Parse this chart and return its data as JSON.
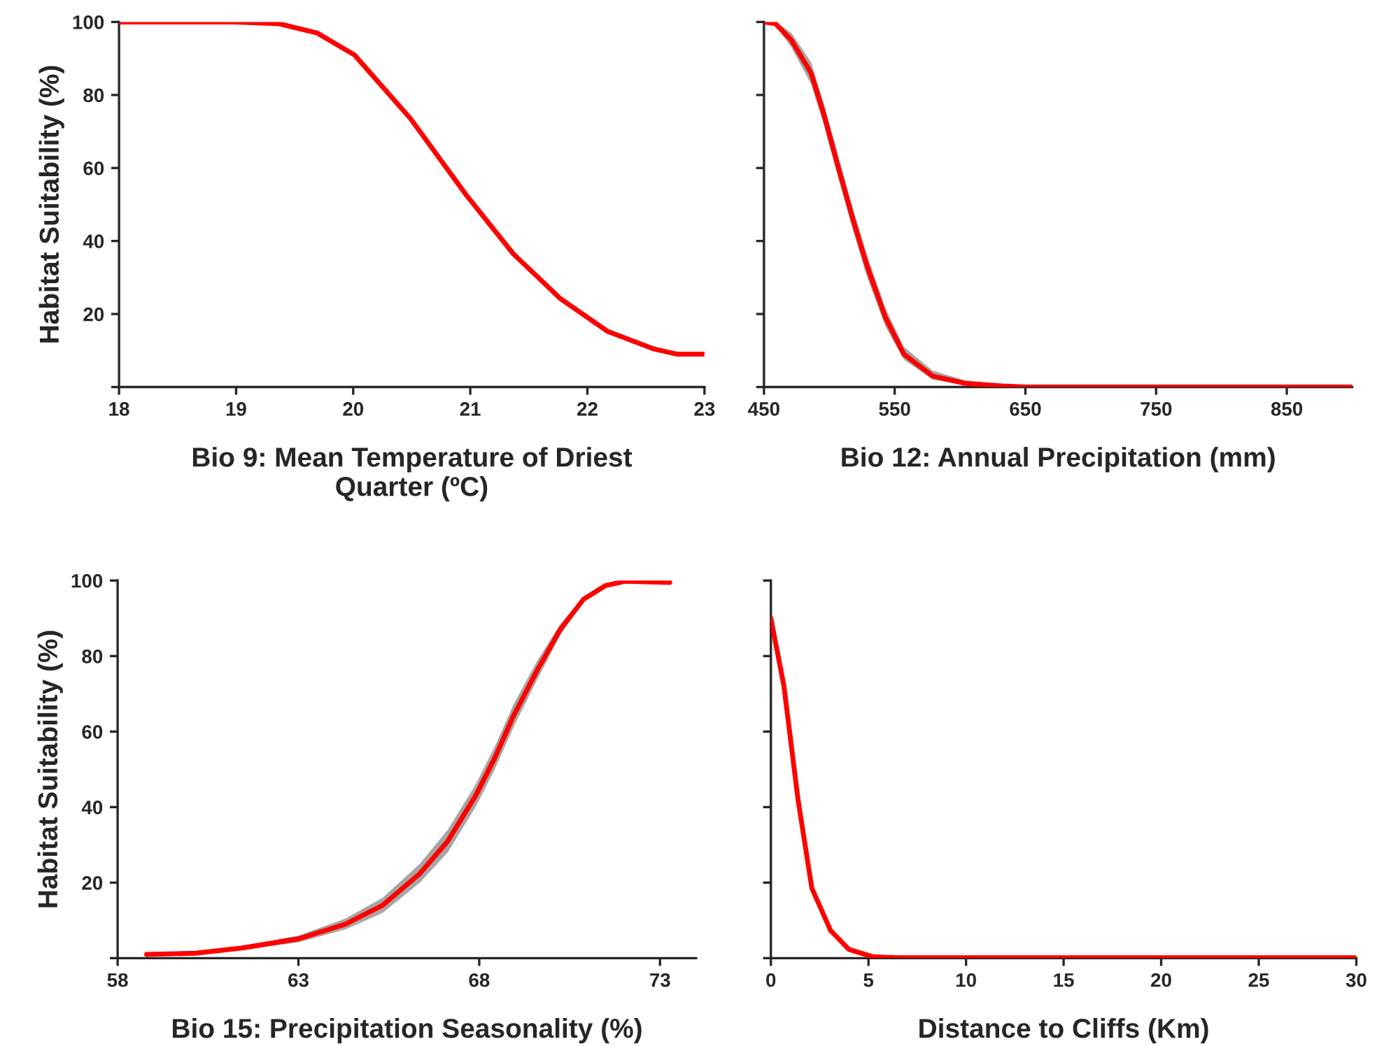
{
  "chart_data": [
    {
      "type": "line",
      "xlabel": "Bio 9: Mean Temperature of Driest\nQuarter (ºC)",
      "ylabel": "Habitat Suitability (%)",
      "xlim": [
        18,
        23
      ],
      "xticks": [
        18,
        19,
        20,
        21,
        22,
        23
      ],
      "ylim": [
        0,
        100
      ],
      "yticks": [
        {
          "value": 0,
          "label": null
        },
        20,
        40,
        60,
        80,
        100
      ],
      "grid": false,
      "legend": false,
      "marker": "none",
      "line_style": "solid",
      "series": [
        {
          "color": "#ff0000",
          "x": [
            18,
            19,
            19.37,
            19.69,
            20.01,
            20.49,
            20.97,
            21.37,
            21.77,
            22.17,
            22.57,
            22.77,
            23
          ],
          "values": [
            100,
            100,
            99.5,
            97,
            91,
            73.5,
            52.4,
            36.4,
            24.2,
            15.3,
            10.4,
            9,
            9
          ]
        }
      ]
    },
    {
      "type": "line",
      "xlabel": "Bio 12: Annual Precipitation (mm)",
      "xlim": [
        450,
        900
      ],
      "xticks": [
        450,
        550,
        650,
        750,
        850
      ],
      "ylim": [
        0,
        100
      ],
      "yticks": [
        {
          "value": 0,
          "label": null
        },
        {
          "value": 20,
          "label": null
        },
        {
          "value": 40,
          "label": null
        },
        {
          "value": 60,
          "label": null
        },
        {
          "value": 80,
          "label": null
        },
        {
          "value": 100,
          "label": null
        }
      ],
      "tick_labels": "x",
      "grid": false,
      "legend": false,
      "marker": "none",
      "line_style": "solid",
      "series": [
        {
          "color": "#ff0000",
          "x": [
            450,
            459,
            471,
            486,
            496,
            507,
            518,
            529,
            543,
            557,
            579,
            604,
            632,
            650,
            900
          ],
          "values": [
            100,
            99.5,
            95,
            86,
            74.5,
            60,
            46,
            33,
            19,
            9,
            3,
            1,
            0.3,
            0,
            0
          ],
          "lower": [
            100,
            99,
            93,
            83,
            71.5,
            57,
            43,
            30,
            16.5,
            7.5,
            2,
            0.5,
            0,
            0,
            0
          ],
          "upper": [
            100,
            100,
            97,
            89,
            77.5,
            63,
            49,
            36,
            21.5,
            11,
            4.5,
            1.8,
            0.6,
            0,
            0
          ]
        }
      ]
    },
    {
      "type": "line",
      "xlabel": "Bio 15: Precipitation Seasonality (%)",
      "ylabel": "Habitat Suitability (%)",
      "xlim": [
        58,
        74
      ],
      "xticks": [
        58,
        63,
        68,
        73
      ],
      "ylim": [
        0,
        100
      ],
      "yticks": [
        {
          "value": 0,
          "label": null
        },
        20,
        40,
        60,
        80,
        100
      ],
      "grid": false,
      "legend": false,
      "marker": "none",
      "line_style": "solid",
      "series": [
        {
          "color": "#ff0000",
          "x": [
            58.8,
            60.16,
            61.45,
            63,
            64.3,
            65.33,
            66.36,
            67.13,
            67.9,
            68.43,
            68.94,
            69.59,
            70.24,
            70.88,
            71.5,
            72.04,
            73.27
          ],
          "values": [
            1,
            1.3,
            2.7,
            5.1,
            9,
            14,
            22.4,
            31,
            43,
            53,
            64,
            76,
            87,
            95,
            98.7,
            99.8,
            99.5
          ],
          "lower": [
            1,
            1,
            2.2,
            4.2,
            7.6,
            12,
            20,
            28,
            40,
            50,
            61,
            73.5,
            85.5,
            94.5,
            98.5,
            99.8,
            99.5
          ],
          "upper": [
            1,
            1.6,
            3.2,
            6,
            10.5,
            16,
            25,
            34,
            46,
            56,
            67,
            78.5,
            88.5,
            95.5,
            99,
            99.8,
            99.5
          ]
        }
      ]
    },
    {
      "type": "line",
      "xlabel": "Distance to Cliffs (Km)",
      "xlim": [
        0,
        30
      ],
      "xticks": [
        0,
        5,
        10,
        15,
        20,
        25,
        30
      ],
      "ylim": [
        0,
        100
      ],
      "yticks": [
        {
          "value": 0,
          "label": null
        },
        {
          "value": 20,
          "label": null
        },
        {
          "value": 40,
          "label": null
        },
        {
          "value": 60,
          "label": null
        },
        {
          "value": 80,
          "label": null
        },
        {
          "value": 100,
          "label": null
        }
      ],
      "tick_labels": "x",
      "grid": false,
      "legend": false,
      "marker": "none",
      "line_style": "solid",
      "series": [
        {
          "color": "#ff0000",
          "x": [
            0,
            0.67,
            1.39,
            2.1,
            3.06,
            4.0,
            5.2,
            6.4,
            30
          ],
          "values": [
            90,
            72,
            42,
            18.5,
            7.3,
            2.3,
            0.4,
            0.1,
            0.1
          ]
        }
      ]
    }
  ]
}
